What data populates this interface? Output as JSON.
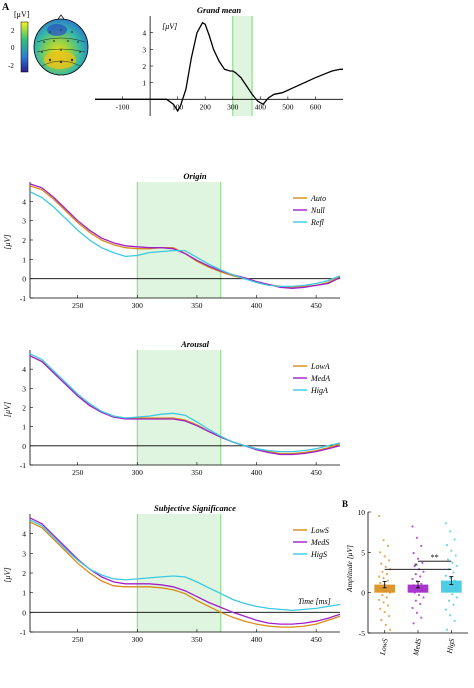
{
  "figure": {
    "panel_a_label": "A",
    "panel_b_label": "B",
    "shade_fill": "#dff5df",
    "shade_line": "#7fd87f",
    "colors": {
      "orange": "#d98c1a",
      "purple": "#a020c8",
      "cyan": "#3cc8e0",
      "black": "#000000"
    }
  },
  "colorbar": {
    "unit": "[μV]",
    "ticks": [
      "2",
      "0",
      "-2"
    ],
    "values": [
      2,
      0,
      -2
    ]
  },
  "chart_data": [
    {
      "type": "line",
      "title": "Grand mean",
      "ylabel": "[μV]",
      "xlabel": "",
      "x_tick_labels": [
        "-100",
        "100",
        "200",
        "300",
        "400",
        "500",
        "600"
      ],
      "y_tick_labels": [
        "1",
        "2",
        "3",
        "4"
      ],
      "xlim": [
        -200,
        700
      ],
      "ylim": [
        -1,
        5
      ],
      "highlight_window": [
        300,
        370
      ],
      "series": [
        {
          "color": "#000000",
          "x": [
            -200,
            -150,
            -100,
            -50,
            0,
            30,
            60,
            85,
            100,
            110,
            130,
            150,
            170,
            190,
            200,
            215,
            230,
            250,
            270,
            290,
            300,
            310,
            330,
            350,
            370,
            390,
            410,
            430,
            450,
            480,
            520,
            560,
            600,
            630,
            660,
            690,
            700
          ],
          "values": [
            0,
            0,
            0,
            0,
            0,
            0,
            0,
            -0.3,
            -0.7,
            -0.4,
            0.6,
            2.5,
            4.0,
            4.6,
            4.5,
            3.8,
            3.0,
            2.3,
            1.8,
            1.7,
            1.7,
            1.6,
            1.3,
            0.8,
            0.3,
            -0.1,
            -0.3,
            0.1,
            0.3,
            0.4,
            0.7,
            1.0,
            1.3,
            1.5,
            1.7,
            1.8,
            1.8
          ]
        }
      ]
    },
    {
      "type": "line",
      "title": "Origin",
      "ylabel": "[μV]",
      "xlabel": "",
      "x_tick_labels": [
        "250",
        "300",
        "350",
        "400",
        "450"
      ],
      "y_tick_labels": [
        "-1",
        "0",
        "1",
        "2",
        "3",
        "4"
      ],
      "xlim": [
        210,
        470
      ],
      "ylim": [
        -1,
        5
      ],
      "highlight_window": [
        300,
        370
      ],
      "series": [
        {
          "name": "Auto",
          "color": "#d98c1a",
          "x": [
            210,
            220,
            230,
            240,
            250,
            260,
            270,
            280,
            290,
            300,
            310,
            320,
            330,
            340,
            350,
            360,
            370,
            380,
            390,
            400,
            410,
            420,
            430,
            440,
            450,
            460,
            470
          ],
          "values": [
            4.8,
            4.6,
            4.1,
            3.5,
            2.9,
            2.4,
            2.0,
            1.75,
            1.6,
            1.55,
            1.55,
            1.6,
            1.6,
            1.3,
            0.9,
            0.6,
            0.35,
            0.15,
            0.0,
            -0.15,
            -0.3,
            -0.4,
            -0.45,
            -0.4,
            -0.35,
            -0.2,
            0.1
          ]
        },
        {
          "name": "Null",
          "color": "#a020c8",
          "x": [
            210,
            220,
            230,
            240,
            250,
            260,
            270,
            280,
            290,
            300,
            310,
            320,
            330,
            340,
            350,
            360,
            370,
            380,
            390,
            400,
            410,
            420,
            430,
            440,
            450,
            460,
            470
          ],
          "values": [
            4.9,
            4.7,
            4.2,
            3.6,
            3.0,
            2.5,
            2.1,
            1.85,
            1.7,
            1.65,
            1.6,
            1.6,
            1.55,
            1.3,
            0.95,
            0.65,
            0.4,
            0.2,
            0.05,
            -0.15,
            -0.3,
            -0.45,
            -0.5,
            -0.45,
            -0.35,
            -0.25,
            0.05
          ]
        },
        {
          "name": "Refl",
          "color": "#3cc8e0",
          "x": [
            210,
            220,
            230,
            240,
            250,
            260,
            270,
            280,
            290,
            300,
            310,
            320,
            330,
            340,
            350,
            360,
            370,
            380,
            390,
            400,
            410,
            420,
            430,
            440,
            450,
            460,
            470
          ],
          "values": [
            4.5,
            4.2,
            3.7,
            3.1,
            2.5,
            2.0,
            1.6,
            1.35,
            1.15,
            1.2,
            1.35,
            1.4,
            1.45,
            1.45,
            1.1,
            0.75,
            0.45,
            0.2,
            0.0,
            -0.2,
            -0.35,
            -0.4,
            -0.4,
            -0.35,
            -0.25,
            -0.1,
            0.15
          ]
        }
      ]
    },
    {
      "type": "line",
      "title": "Arousal",
      "ylabel": "[μV]",
      "xlabel": "",
      "x_tick_labels": [
        "250",
        "300",
        "350",
        "400",
        "450"
      ],
      "y_tick_labels": [
        "-1",
        "0",
        "1",
        "2",
        "3",
        "4"
      ],
      "xlim": [
        210,
        470
      ],
      "ylim": [
        -1,
        5
      ],
      "highlight_window": [
        300,
        370
      ],
      "series": [
        {
          "name": "LowA",
          "color": "#d98c1a",
          "x": [
            210,
            220,
            230,
            240,
            250,
            260,
            270,
            280,
            290,
            300,
            310,
            320,
            330,
            340,
            350,
            360,
            370,
            380,
            390,
            400,
            410,
            420,
            430,
            440,
            450,
            460,
            470
          ],
          "values": [
            4.7,
            4.4,
            3.8,
            3.2,
            2.6,
            2.15,
            1.8,
            1.55,
            1.45,
            1.45,
            1.45,
            1.45,
            1.45,
            1.35,
            1.1,
            0.75,
            0.45,
            0.2,
            0.0,
            -0.15,
            -0.3,
            -0.4,
            -0.4,
            -0.35,
            -0.25,
            -0.1,
            0.1
          ]
        },
        {
          "name": "MedA",
          "color": "#a020c8",
          "x": [
            210,
            220,
            230,
            240,
            250,
            260,
            270,
            280,
            290,
            300,
            310,
            320,
            330,
            340,
            350,
            360,
            370,
            380,
            390,
            400,
            410,
            420,
            430,
            440,
            450,
            460,
            470
          ],
          "values": [
            4.7,
            4.4,
            3.8,
            3.2,
            2.6,
            2.1,
            1.75,
            1.5,
            1.4,
            1.4,
            1.4,
            1.4,
            1.4,
            1.3,
            1.05,
            0.75,
            0.45,
            0.2,
            0.0,
            -0.2,
            -0.35,
            -0.45,
            -0.45,
            -0.4,
            -0.3,
            -0.15,
            0.0
          ]
        },
        {
          "name": "HigA",
          "color": "#3cc8e0",
          "x": [
            210,
            220,
            230,
            240,
            250,
            260,
            270,
            280,
            290,
            300,
            310,
            320,
            330,
            340,
            350,
            360,
            370,
            380,
            390,
            400,
            410,
            420,
            430,
            440,
            450,
            460,
            470
          ],
          "values": [
            4.8,
            4.5,
            3.9,
            3.3,
            2.7,
            2.2,
            1.8,
            1.55,
            1.45,
            1.5,
            1.55,
            1.65,
            1.7,
            1.6,
            1.25,
            0.85,
            0.5,
            0.2,
            0.0,
            -0.15,
            -0.25,
            -0.3,
            -0.3,
            -0.25,
            -0.15,
            0.0,
            0.15
          ]
        }
      ]
    },
    {
      "type": "line",
      "title": "Subjective Significance",
      "ylabel": "[μV]",
      "xlabel": "Time [ms]",
      "x_tick_labels": [
        "250",
        "300",
        "350",
        "400",
        "450"
      ],
      "y_tick_labels": [
        "-1",
        "0",
        "1",
        "2",
        "3",
        "4"
      ],
      "xlim": [
        210,
        470
      ],
      "ylim": [
        -1,
        5
      ],
      "highlight_window": [
        300,
        370
      ],
      "series": [
        {
          "name": "LowS",
          "color": "#d98c1a",
          "x": [
            210,
            220,
            230,
            240,
            250,
            260,
            270,
            280,
            290,
            300,
            310,
            320,
            330,
            340,
            350,
            360,
            370,
            380,
            390,
            400,
            410,
            420,
            430,
            440,
            450,
            460,
            470
          ],
          "values": [
            4.6,
            4.3,
            3.7,
            3.1,
            2.5,
            2.0,
            1.6,
            1.35,
            1.3,
            1.3,
            1.3,
            1.25,
            1.15,
            0.95,
            0.6,
            0.3,
            0.0,
            -0.25,
            -0.45,
            -0.6,
            -0.7,
            -0.75,
            -0.75,
            -0.7,
            -0.6,
            -0.4,
            -0.2
          ]
        },
        {
          "name": "MedS",
          "color": "#a020c8",
          "x": [
            210,
            220,
            230,
            240,
            250,
            260,
            270,
            280,
            290,
            300,
            310,
            320,
            330,
            340,
            350,
            360,
            370,
            380,
            390,
            400,
            410,
            420,
            430,
            440,
            450,
            460,
            470
          ],
          "values": [
            4.8,
            4.5,
            3.9,
            3.3,
            2.7,
            2.2,
            1.8,
            1.55,
            1.45,
            1.45,
            1.45,
            1.4,
            1.3,
            1.1,
            0.8,
            0.5,
            0.25,
            0.0,
            -0.2,
            -0.4,
            -0.55,
            -0.6,
            -0.6,
            -0.55,
            -0.45,
            -0.3,
            -0.1
          ]
        },
        {
          "name": "HigS",
          "color": "#3cc8e0",
          "x": [
            210,
            220,
            230,
            240,
            250,
            260,
            270,
            280,
            290,
            300,
            310,
            320,
            330,
            340,
            350,
            360,
            370,
            380,
            390,
            400,
            410,
            420,
            430,
            440,
            450,
            460,
            470
          ],
          "values": [
            4.7,
            4.4,
            3.8,
            3.2,
            2.65,
            2.2,
            1.9,
            1.7,
            1.65,
            1.7,
            1.75,
            1.8,
            1.85,
            1.8,
            1.55,
            1.25,
            0.95,
            0.65,
            0.45,
            0.3,
            0.2,
            0.15,
            0.1,
            0.15,
            0.2,
            0.3,
            0.4
          ]
        }
      ]
    },
    {
      "type": "bar",
      "title": "",
      "ylabel": "Amplitude [μV]",
      "xlabel": "",
      "categories": [
        "LowS",
        "MedS",
        "HigS"
      ],
      "values": [
        1.0,
        1.0,
        1.5
      ],
      "errors": [
        0.4,
        0.4,
        0.5
      ],
      "colors": [
        "#d98c1a",
        "#a020c8",
        "#3cc8e0"
      ],
      "y_tick_labels": [
        "-5",
        "0",
        "5",
        "10"
      ],
      "ylim": [
        -5,
        10
      ],
      "significance": [
        {
          "between": [
            "LowS",
            "HigS"
          ],
          "label": "*"
        },
        {
          "between": [
            "MedS",
            "HigS"
          ],
          "label": "**"
        }
      ],
      "points": [
        [
          9.5,
          6.5,
          5.8,
          5.0,
          4.5,
          4.0,
          3.6,
          3.2,
          2.9,
          2.6,
          2.3,
          2.0,
          1.8,
          1.5,
          1.2,
          1.0,
          0.8,
          0.5,
          0.2,
          0.0,
          -0.3,
          -0.6,
          -0.9,
          -1.2,
          -1.6,
          -2.0,
          -2.4,
          -2.9,
          -3.4,
          -4.0,
          -4.6
        ],
        [
          8.2,
          6.8,
          5.8,
          4.9,
          4.2,
          3.7,
          3.3,
          2.9,
          2.6,
          2.3,
          2.0,
          1.7,
          1.4,
          1.1,
          0.9,
          0.6,
          0.3,
          0.0,
          -0.3,
          -0.6,
          -1.0,
          -1.4,
          -1.9,
          -2.5,
          -3.1,
          -3.8
        ],
        [
          8.6,
          7.6,
          6.6,
          5.9,
          5.2,
          4.6,
          4.1,
          3.7,
          3.3,
          2.9,
          2.5,
          2.1,
          1.8,
          1.5,
          1.2,
          0.9,
          0.5,
          0.2,
          -0.2,
          -0.6,
          -1.0,
          -1.5,
          -2.1,
          -2.8,
          -3.5,
          -4.6
        ]
      ]
    }
  ]
}
